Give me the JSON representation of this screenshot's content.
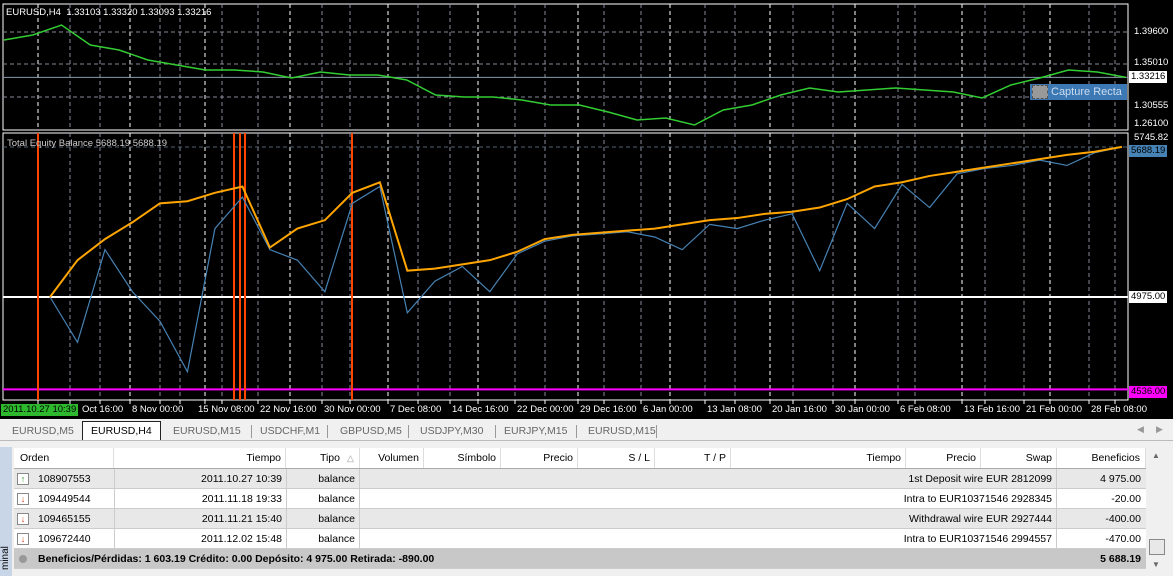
{
  "price_pane": {
    "symbol_label": "EURUSD,H4",
    "ohlc": "1.33103 1.33320 1.33093 1.33216",
    "axis_ticks": [
      "1.39600",
      "1.35010",
      "1.30555",
      "1.26100"
    ],
    "current_price": "1.33216",
    "capture_tooltip": "Capture Recta",
    "line_color": "#32cd32"
  },
  "indicator_pane": {
    "label": "Total Equity Balance 5688.19 5688.19",
    "axis_ticks": [
      "5745.82",
      "5688.19",
      "4975.00",
      "4536.00"
    ],
    "balance_color": "#ffa500",
    "equity_color": "#4682b4",
    "deposit_level_color": "#ffffff",
    "min_level_color": "#ff00ff",
    "event_line_color": "#ff4500"
  },
  "time_axis": {
    "start_label": "2011.10.27 10:39",
    "labels": [
      "Oct 16:00",
      "8 Nov 00:00",
      "15 Nov 08:00",
      "22 Nov 16:00",
      "30 Nov 00:00",
      "7 Dec 08:00",
      "14 Dec 16:00",
      "22 Dec 00:00",
      "29 Dec 16:00",
      "6 Jan 00:00",
      "13 Jan 08:00",
      "20 Jan 16:00",
      "30 Jan 00:00",
      "6 Feb 08:00",
      "13 Feb 16:00",
      "21 Feb 00:00",
      "28 Feb 08:00"
    ]
  },
  "chart_data": [
    {
      "type": "line",
      "series": [
        {
          "values": [
            1.3848,
            1.3918,
            1.4058,
            1.3777,
            1.3707,
            1.3566,
            1.3496,
            1.3426,
            1.3426,
            1.3398,
            1.3313,
            1.3398,
            1.3355,
            1.3355,
            1.3285,
            1.3074,
            1.3046,
            1.3046,
            1.3004,
            1.2934,
            1.2934,
            1.2835,
            1.2723,
            1.2751,
            1.2652,
            1.2863,
            1.2934,
            1.3074,
            1.3173,
            1.3116,
            1.3145,
            1.3173,
            1.3145,
            1.3116,
            1.3032,
            1.3215,
            1.3313,
            1.3426,
            1.3398,
            1.33216
          ]
        }
      ],
      "ylim": [
        1.261,
        1.396
      ]
    },
    {
      "type": "line",
      "series": [
        {
          "name": "Balance",
          "values": [
            4975,
            5150,
            5250,
            5330,
            5420,
            5430,
            5470,
            5500,
            5210,
            5300,
            5340,
            5470,
            5520,
            5100,
            5110,
            5130,
            5150,
            5190,
            5250,
            5270,
            5280,
            5290,
            5300,
            5320,
            5340,
            5350,
            5370,
            5380,
            5400,
            5440,
            5500,
            5520,
            5550,
            5570,
            5590,
            5610,
            5630,
            5650,
            5665,
            5688.19
          ]
        },
        {
          "name": "Equity",
          "values": [
            4975,
            4760,
            5200,
            5000,
            4860,
            4620,
            5300,
            5450,
            5200,
            5150,
            5000,
            5420,
            5500,
            4900,
            5050,
            5120,
            5000,
            5180,
            5240,
            5265,
            5275,
            5285,
            5260,
            5200,
            5320,
            5300,
            5340,
            5370,
            5100,
            5420,
            5300,
            5510,
            5400,
            5560,
            5585,
            5600,
            5625,
            5600,
            5660,
            5688.19
          ]
        }
      ],
      "levels": [
        4975.0,
        4536.0
      ],
      "ylim": [
        4536,
        5745.82
      ]
    }
  ],
  "tabs": [
    {
      "label": "EURUSD,M5"
    },
    {
      "label": "EURUSD,H4",
      "active": true
    },
    {
      "label": "EURUSD,M15"
    },
    {
      "label": "USDCHF,M1"
    },
    {
      "label": "GBPUSD,M5"
    },
    {
      "label": "USDJPY,M30"
    },
    {
      "label": "EURJPY,M15"
    },
    {
      "label": "EURUSD,M15"
    }
  ],
  "terminal": {
    "side_label": "minal",
    "columns": [
      "Orden",
      "Tiempo",
      "Tipo",
      "Volumen",
      "Símbolo",
      "Precio",
      "S / L",
      "T / P",
      "Tiempo",
      "Precio",
      "Swap",
      "Beneficios"
    ],
    "rows": [
      {
        "icon": "arrow-up-icon",
        "orden": "108907553",
        "tiempo": "2011.10.27 10:39",
        "tipo": "balance",
        "comment": "1st Deposit wire EUR 2812099",
        "beneficios": "4 975.00"
      },
      {
        "icon": "arrow-down-icon",
        "orden": "109449544",
        "tiempo": "2011.11.18 19:33",
        "tipo": "balance",
        "comment": "Intra to EUR10371546 2928345",
        "beneficios": "-20.00"
      },
      {
        "icon": "arrow-down-icon",
        "orden": "109465155",
        "tiempo": "2011.11.21 15:40",
        "tipo": "balance",
        "comment": "Withdrawal wire EUR 2927444",
        "beneficios": "-400.00"
      },
      {
        "icon": "arrow-down-icon",
        "orden": "109672440",
        "tiempo": "2011.12.02 15:48",
        "tipo": "balance",
        "comment": "Intra to EUR10371546 2994557",
        "beneficios": "-470.00"
      }
    ],
    "summary": "Beneficios/Pérdidas: 1 603.19  Crédito: 0.00  Depósito: 4 975.00  Retirada: -890.00",
    "total": "5 688.19"
  }
}
